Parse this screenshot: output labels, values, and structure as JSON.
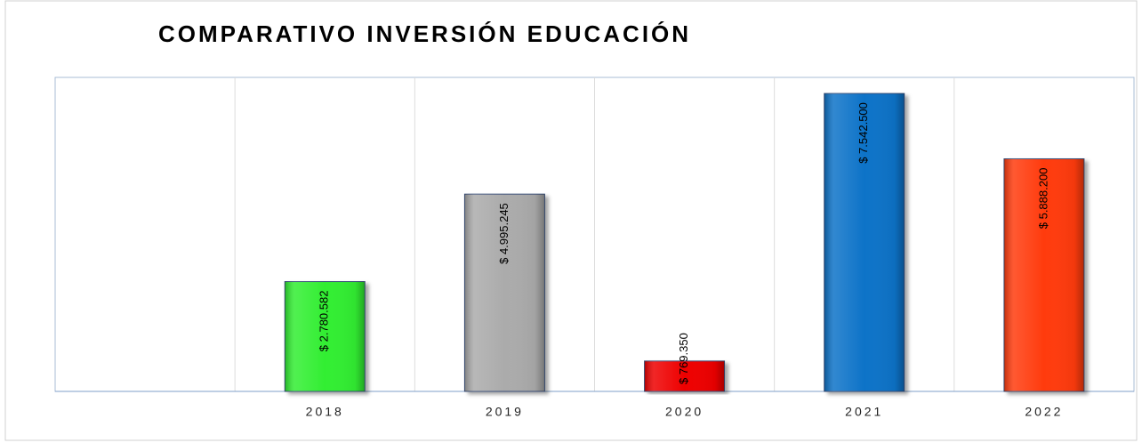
{
  "chart_data": {
    "type": "bar",
    "title": "COMPARATIVO INVERSIÓN EDUCACIÓN",
    "categories": [
      null,
      "2018",
      "2019",
      "2020",
      "2021",
      "2022"
    ],
    "values": [
      null,
      2780582,
      4995245,
      769350,
      7542500,
      5888200
    ],
    "value_labels": [
      null,
      "$ 2.780.582",
      "$ 4.995.245",
      "$ 769.350",
      "$ 7.542.500",
      "$ 5.888.200"
    ],
    "colors": [
      null,
      "#33ee33",
      "#ababab",
      "#ee0000",
      "#0873c8",
      "#ff3a0a"
    ],
    "ylim": [
      0,
      7950000
    ],
    "grid": true
  }
}
